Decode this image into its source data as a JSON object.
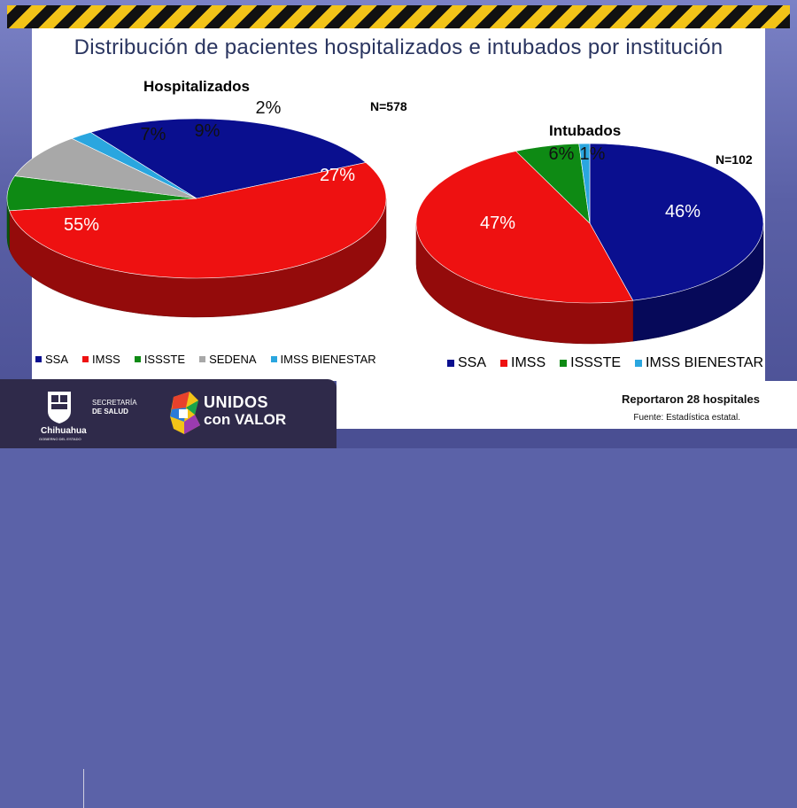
{
  "title": "Distribución de pacientes hospitalizados e intubados por institución",
  "colors": {
    "SSA": "#0a0f8f",
    "IMSS": "#ee1111",
    "ISSSTE": "#0e8a14",
    "SEDENA": "#a8a8a8",
    "IMSS BIENESTAR": "#2aa6df"
  },
  "chart_data": [
    {
      "type": "pie",
      "title": "Hospitalizados",
      "n_label": "N=578",
      "labels": [
        "SSA",
        "IMSS",
        "ISSSTE",
        "SEDENA",
        "IMSS BIENESTAR"
      ],
      "values": [
        27,
        55,
        7,
        9,
        2
      ],
      "value_labels": [
        "27%",
        "55%",
        "7%",
        "9%",
        "2%"
      ],
      "legend": [
        "SSA",
        "IMSS",
        "ISSSTE",
        "SEDENA",
        "IMSS BIENESTAR"
      ],
      "legend_position": "bottom"
    },
    {
      "type": "pie",
      "title": "Intubados",
      "n_label": "N=102",
      "labels": [
        "SSA",
        "IMSS",
        "ISSSTE",
        "IMSS BIENESTAR"
      ],
      "values": [
        46,
        47,
        6,
        1
      ],
      "value_labels": [
        "46%",
        "47%",
        "6%",
        "1%"
      ],
      "legend": [
        "SSA",
        "IMSS",
        "ISSSTE",
        "IMSS BIENESTAR"
      ],
      "legend_position": "bottom"
    }
  ],
  "footer": {
    "note": "Reportaron 28 hospitales",
    "source": "Fuente: Estadística estatal.",
    "gov_name": "Chihuahua",
    "gov_sub": "GOBIERNO DEL ESTADO",
    "dept_line1": "SECRETARÍA",
    "dept_line2": "DE SALUD",
    "campaign_line1": "UNIDOS",
    "campaign_line2": "con VALOR"
  }
}
